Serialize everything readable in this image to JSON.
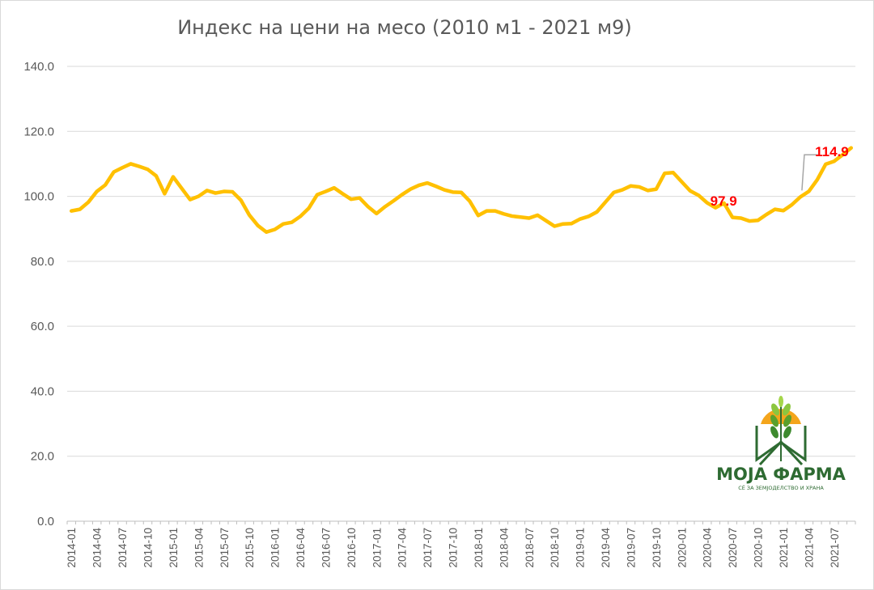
{
  "chart_data": {
    "type": "line",
    "title": "Индекс на цени на месо (2010 м1 - 2021 м9)",
    "xlabel": "",
    "ylabel": "",
    "ylim": [
      0,
      140
    ],
    "yticks": [
      "0.0",
      "20.0",
      "40.0",
      "60.0",
      "80.0",
      "100.0",
      "120.0",
      "140.0"
    ],
    "grid": true,
    "legend": "none",
    "line_color": "#FFC000",
    "x": [
      "2014-01",
      "2014-02",
      "2014-03",
      "2014-04",
      "2014-05",
      "2014-06",
      "2014-07",
      "2014-08",
      "2014-09",
      "2014-10",
      "2014-11",
      "2014-12",
      "2015-01",
      "2015-02",
      "2015-03",
      "2015-04",
      "2015-05",
      "2015-06",
      "2015-07",
      "2015-08",
      "2015-09",
      "2015-10",
      "2015-11",
      "2015-12",
      "2016-01",
      "2016-02",
      "2016-03",
      "2016-04",
      "2016-05",
      "2016-06",
      "2016-07",
      "2016-08",
      "2016-09",
      "2016-10",
      "2016-11",
      "2016-12",
      "2017-01",
      "2017-02",
      "2017-03",
      "2017-04",
      "2017-05",
      "2017-06",
      "2017-07",
      "2017-08",
      "2017-09",
      "2017-10",
      "2017-11",
      "2017-12",
      "2018-01",
      "2018-02",
      "2018-03",
      "2018-04",
      "2018-05",
      "2018-06",
      "2018-07",
      "2018-08",
      "2018-09",
      "2018-10",
      "2018-11",
      "2018-12",
      "2019-01",
      "2019-02",
      "2019-03",
      "2019-04",
      "2019-05",
      "2019-06",
      "2019-07",
      "2019-08",
      "2019-09",
      "2019-10",
      "2019-11",
      "2019-12",
      "2020-01",
      "2020-02",
      "2020-03",
      "2020-04",
      "2020-05",
      "2020-06",
      "2020-07",
      "2020-08",
      "2020-09",
      "2020-10",
      "2020-11",
      "2020-12",
      "2021-01",
      "2021-02",
      "2021-03",
      "2021-04",
      "2021-05",
      "2021-06",
      "2021-07",
      "2021-08",
      "2021-09"
    ],
    "tick_labels": [
      "2014-01",
      "2014-04",
      "2014-07",
      "2014-10",
      "2015-01",
      "2015-04",
      "2015-07",
      "2015-10",
      "2016-01",
      "2016-04",
      "2016-07",
      "2016-10",
      "2017-01",
      "2017-04",
      "2017-07",
      "2017-10",
      "2018-01",
      "2018-04",
      "2018-07",
      "2018-10",
      "2019-01",
      "2019-04",
      "2019-07",
      "2019-10",
      "2020-01",
      "2020-04",
      "2020-07",
      "2020-10",
      "2021-01",
      "2021-04",
      "2021-07"
    ],
    "values": [
      95.5,
      96,
      98.2,
      101.5,
      103.5,
      107.5,
      108.8,
      110,
      109.2,
      108.3,
      106.3,
      100.8,
      106,
      102.5,
      99,
      100,
      101.8,
      101,
      101.5,
      101.4,
      98.8,
      94.2,
      91,
      89,
      89.8,
      91.5,
      92,
      93.8,
      96.3,
      100.5,
      101.5,
      102.6,
      100.8,
      99.1,
      99.5,
      96.8,
      94.7,
      96.8,
      98.6,
      100.5,
      102.2,
      103.4,
      104.1,
      103.1,
      102,
      101.3,
      101.2,
      98.5,
      94.1,
      95.5,
      95.5,
      94.6,
      93.9,
      93.6,
      93.3,
      94.2,
      92.5,
      90.8,
      91.5,
      91.6,
      93,
      93.8,
      95.2,
      98.2,
      101.2,
      102,
      103.2,
      102.9,
      101.8,
      102.2,
      107.1,
      107.3,
      104.5,
      101.7,
      100.3,
      98,
      96.5,
      97.9,
      93.5,
      93.3,
      92.4,
      92.6,
      94.4,
      96,
      95.6,
      97.4,
      99.8,
      101.5,
      105.1,
      109.9,
      110.8,
      112.8,
      114.9
    ],
    "data_labels": [
      {
        "x": "2020-06",
        "text": "97.9"
      },
      {
        "x": "2021-09",
        "text": "114.9"
      }
    ]
  },
  "logo": {
    "name": "МОЈА ФАРМА",
    "tagline": "СЀ ЗА ЗЕМЈОДЕЛСТВО И ХРАНА"
  }
}
